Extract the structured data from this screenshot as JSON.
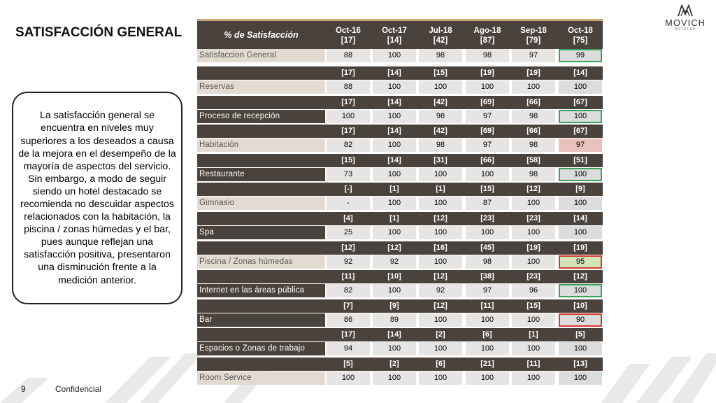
{
  "slide": {
    "title": "SATISFACCIÓN GENERAL",
    "summary": "La satisfacción general se encuentra en niveles muy superiores a los deseados a causa de la mejora en el desempeño de la mayoría de aspectos del servicio. Sin embargo, a modo de seguir siendo un hotel destacado se recomienda no descuidar aspectos relacionados con la habitación, la piscina / zonas húmedas y el bar, pues aunque reflejan una satisfacción positiva, presentaron una disminución frente a la medición anterior.",
    "page_number": "9",
    "footer_label": "Confidencial"
  },
  "logo": {
    "text": "MOVICH",
    "subtext": "HOTELES",
    "icon": "movich-m-icon"
  },
  "colors": {
    "header_dark": "#4a433d",
    "label_light": "#e3dbd2",
    "cell": "#e7e5e3",
    "accent_gold": "#c8a778",
    "increase_border": "#3aa35a",
    "decrease_border": "#d23a2e",
    "decrease_fill": "#e8c0bc",
    "highlight_green_fill": "#d3e3b8"
  },
  "table": {
    "header_label": "% de Satisfacción",
    "periods": [
      {
        "label": "Oct-16",
        "n": "[17]"
      },
      {
        "label": "Oct-17",
        "n": "[14]"
      },
      {
        "label": "Jul-18",
        "n": "[42]"
      },
      {
        "label": "Ago-18",
        "n": "[87]"
      },
      {
        "label": "Sep-18",
        "n": "[79]"
      },
      {
        "label": "Oct-18",
        "n": "[75]"
      }
    ],
    "general": {
      "label": "Satisfaccion General",
      "values": [
        "88",
        "100",
        "98",
        "98",
        "97",
        "99"
      ],
      "last_flag": "up",
      "last_fill": ""
    },
    "sections": [
      {
        "label": "Reservas",
        "n": [
          "[17]",
          "[14]",
          "[15]",
          "[19]",
          "[19]",
          "[14]"
        ],
        "values": [
          "88",
          "100",
          "100",
          "100",
          "100",
          "100"
        ],
        "last_flag": "",
        "last_fill": ""
      },
      {
        "label": "Proceso de recepción",
        "n": [
          "[17]",
          "[14]",
          "[42]",
          "[69]",
          "[66]",
          "[67]"
        ],
        "values": [
          "100",
          "100",
          "98",
          "97",
          "98",
          "100"
        ],
        "last_flag": "up",
        "last_fill": ""
      },
      {
        "label": "Habitación",
        "n": [
          "[17]",
          "[14]",
          "[42]",
          "[69]",
          "[66]",
          "[67]"
        ],
        "values": [
          "82",
          "100",
          "98",
          "97",
          "98",
          "97"
        ],
        "last_flag": "",
        "last_fill": "pink"
      },
      {
        "label": "Restaurante",
        "n": [
          "[15]",
          "[14]",
          "[31]",
          "[66]",
          "[58]",
          "[51]"
        ],
        "values": [
          "73",
          "100",
          "100",
          "100",
          "98",
          "100"
        ],
        "last_flag": "up",
        "last_fill": ""
      },
      {
        "label": "Gimnasio",
        "n": [
          "[-]",
          "[1]",
          "[1]",
          "[15]",
          "[12]",
          "[9]"
        ],
        "values": [
          "-",
          "100",
          "100",
          "87",
          "100",
          "100"
        ],
        "last_flag": "",
        "last_fill": ""
      },
      {
        "label": "Spa",
        "n": [
          "[4]",
          "[1]",
          "[12]",
          "[23]",
          "[23]",
          "[14]"
        ],
        "values": [
          "25",
          "100",
          "100",
          "100",
          "100",
          "100"
        ],
        "last_flag": "",
        "last_fill": ""
      },
      {
        "label": "Piscina / Zonas húmedas",
        "n": [
          "[12]",
          "[12]",
          "[16]",
          "[45]",
          "[19]",
          "[19]"
        ],
        "values": [
          "92",
          "92",
          "100",
          "98",
          "100",
          "95"
        ],
        "last_flag": "down",
        "last_fill": "green"
      },
      {
        "label": "Internet en las áreas pública",
        "n": [
          "[11]",
          "[10]",
          "[12]",
          "[38]",
          "[23]",
          "[12]"
        ],
        "values": [
          "82",
          "100",
          "92",
          "97",
          "96",
          "100"
        ],
        "last_flag": "up",
        "last_fill": ""
      },
      {
        "label": "Bar",
        "n": [
          "[7]",
          "[9]",
          "[12]",
          "[11]",
          "[15]",
          "[10]"
        ],
        "values": [
          "86",
          "89",
          "100",
          "100",
          "100",
          "90"
        ],
        "last_flag": "down",
        "last_fill": ""
      },
      {
        "label": "Espacios o Zonas de trabajo",
        "n": [
          "[17]",
          "[14]",
          "[2]",
          "[6]",
          "[1]",
          "[5]"
        ],
        "values": [
          "94",
          "100",
          "100",
          "100",
          "100",
          "100"
        ],
        "last_flag": "",
        "last_fill": ""
      },
      {
        "label": "Room Service",
        "n": [
          "[5]",
          "[2]",
          "[6]",
          "[21]",
          "[11]",
          "[13]"
        ],
        "values": [
          "100",
          "100",
          "100",
          "100",
          "100",
          "100"
        ],
        "last_flag": "",
        "last_fill": ""
      }
    ]
  }
}
